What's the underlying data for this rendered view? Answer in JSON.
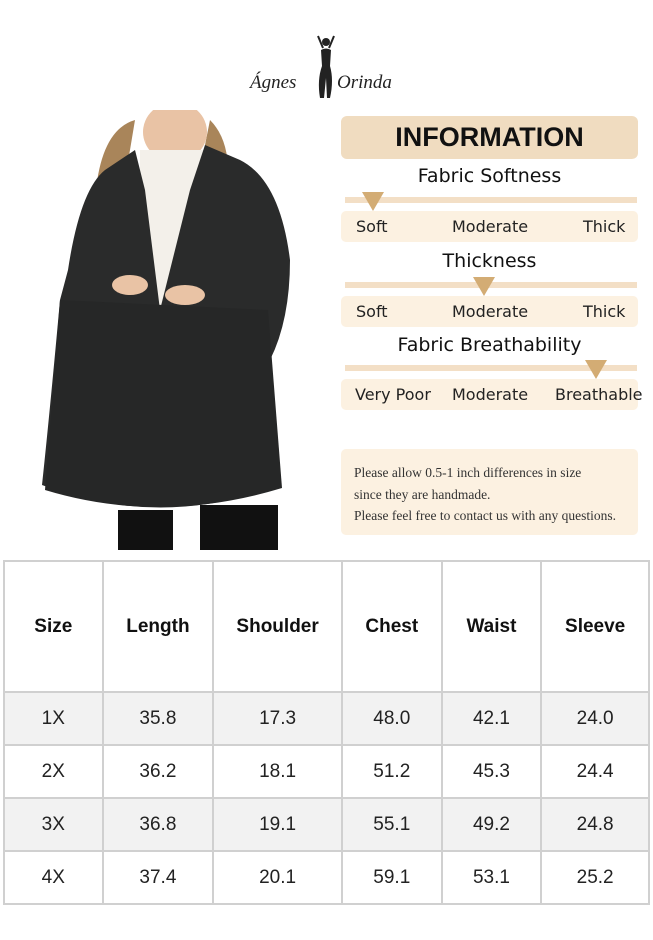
{
  "brand": {
    "logo_text_left": "Ágnes",
    "logo_text_right": "Orinda"
  },
  "product_photo": {
    "description_icon": "model-black-coat-photo"
  },
  "info": {
    "title": "INFORMATION",
    "sections": [
      {
        "title": "Fabric Softness",
        "labels": [
          "Soft",
          "Moderate",
          "Thick"
        ],
        "selected": "Soft",
        "level": 0
      },
      {
        "title": "Thickness",
        "labels": [
          "Soft",
          "Moderate",
          "Thick"
        ],
        "selected": "Moderate",
        "level": 0.5
      },
      {
        "title": "Fabric Breathability",
        "labels": [
          "Very Poor",
          "Moderate",
          "Breathable"
        ],
        "selected": "Breathable",
        "level": 1
      }
    ],
    "marker_color": "#d3ac74",
    "note": [
      "Please allow 0.5-1 inch differences in size",
      "since they are handmade.",
      "Please feel free to contact us with any questions."
    ]
  },
  "size_table": {
    "headers": [
      "Size",
      "Length",
      "Shoulder",
      "Chest",
      "Waist",
      "Sleeve"
    ],
    "rows": [
      [
        "1X",
        "35.8",
        "17.3",
        "48.0",
        "42.1",
        "24.0"
      ],
      [
        "2X",
        "36.2",
        "18.1",
        "51.2",
        "45.3",
        "24.4"
      ],
      [
        "3X",
        "36.8",
        "19.1",
        "55.1",
        "49.2",
        "24.8"
      ],
      [
        "4X",
        "37.4",
        "20.1",
        "59.1",
        "53.1",
        "25.2"
      ]
    ]
  }
}
